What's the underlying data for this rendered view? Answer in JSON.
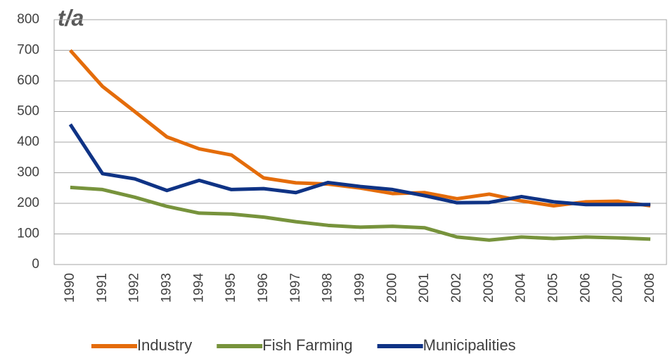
{
  "chart_data": {
    "type": "line",
    "y_label": "t/a",
    "categories": [
      "1990",
      "1991",
      "1992",
      "1993",
      "1994",
      "1995",
      "1996",
      "1997",
      "1998",
      "1999",
      "2000",
      "2001",
      "2002",
      "2003",
      "2004",
      "2005",
      "2006",
      "2007",
      "2008"
    ],
    "series": [
      {
        "name": "Industry",
        "color": "#e46c0a",
        "values": [
          700,
          582,
          500,
          417,
          378,
          358,
          283,
          267,
          263,
          250,
          232,
          235,
          215,
          230,
          208,
          192,
          205,
          207,
          192
        ]
      },
      {
        "name": "Fish Farming",
        "color": "#77933c",
        "values": [
          252,
          245,
          220,
          190,
          168,
          165,
          155,
          140,
          128,
          122,
          125,
          120,
          90,
          80,
          90,
          85,
          90,
          87,
          83
        ]
      },
      {
        "name": "Municipalities",
        "color": "#0f3385",
        "values": [
          458,
          297,
          280,
          242,
          275,
          245,
          248,
          235,
          268,
          255,
          245,
          225,
          202,
          203,
          222,
          205,
          196,
          196,
          196
        ]
      }
    ],
    "ylim": [
      0,
      800
    ],
    "yticks": [
      0,
      100,
      200,
      300,
      400,
      500,
      600,
      700,
      800
    ],
    "grid": true,
    "legend": "bottom"
  }
}
